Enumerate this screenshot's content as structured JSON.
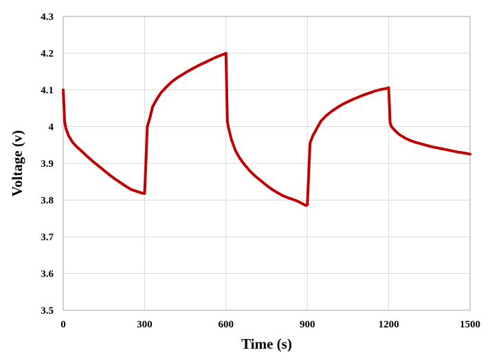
{
  "chart_data": {
    "type": "line",
    "title": "",
    "xlabel": "Time (s)",
    "ylabel": "Voltage (v)",
    "xlim": [
      0,
      1500
    ],
    "ylim": [
      3.5,
      4.3
    ],
    "x_ticks": [
      0,
      300,
      600,
      900,
      1200,
      1500
    ],
    "x_tick_labels": [
      "0",
      "300",
      "600",
      "900",
      "1200",
      "1500"
    ],
    "y_ticks": [
      3.5,
      3.6,
      3.7,
      3.8,
      3.9,
      4.0,
      4.1,
      4.2,
      4.3
    ],
    "y_tick_labels": [
      "3.5",
      "3.6",
      "3.7",
      "3.8",
      "3.9",
      "4",
      "4.1",
      "4.2",
      "4.3"
    ],
    "grid": true,
    "legend": "none",
    "series": [
      {
        "color": "#c00000",
        "x": [
          0,
          5,
          10,
          20,
          35,
          50,
          70,
          90,
          110,
          130,
          150,
          170,
          190,
          210,
          230,
          250,
          270,
          290,
          300,
          305,
          310,
          320,
          330,
          345,
          360,
          380,
          400,
          420,
          440,
          460,
          480,
          500,
          520,
          540,
          560,
          580,
          595,
          600,
          605,
          610,
          620,
          635,
          650,
          670,
          690,
          710,
          730,
          750,
          770,
          790,
          810,
          830,
          850,
          870,
          885,
          895,
          900,
          905,
          910,
          920,
          935,
          950,
          970,
          990,
          1010,
          1030,
          1050,
          1070,
          1090,
          1110,
          1130,
          1150,
          1170,
          1190,
          1200,
          1205,
          1210,
          1225,
          1240,
          1260,
          1280,
          1300,
          1320,
          1340,
          1360,
          1380,
          1400,
          1420,
          1440,
          1460,
          1480,
          1500
        ],
        "y": [
          4.1,
          4.015,
          3.995,
          3.975,
          3.957,
          3.945,
          3.932,
          3.918,
          3.905,
          3.893,
          3.881,
          3.869,
          3.858,
          3.848,
          3.838,
          3.829,
          3.824,
          3.819,
          3.818,
          3.905,
          4.0,
          4.025,
          4.055,
          4.075,
          4.092,
          4.108,
          4.122,
          4.133,
          4.142,
          4.151,
          4.159,
          4.167,
          4.174,
          4.181,
          4.188,
          4.194,
          4.198,
          4.2,
          4.015,
          3.995,
          3.965,
          3.935,
          3.915,
          3.895,
          3.878,
          3.864,
          3.852,
          3.84,
          3.829,
          3.82,
          3.812,
          3.806,
          3.801,
          3.795,
          3.789,
          3.785,
          3.787,
          3.87,
          3.955,
          3.975,
          3.995,
          4.015,
          4.03,
          4.042,
          4.052,
          4.061,
          4.068,
          4.075,
          4.081,
          4.087,
          4.092,
          4.097,
          4.101,
          4.104,
          4.106,
          4.012,
          4.0,
          3.988,
          3.978,
          3.969,
          3.962,
          3.957,
          3.953,
          3.949,
          3.945,
          3.942,
          3.939,
          3.936,
          3.933,
          3.93,
          3.928,
          3.925
        ]
      }
    ]
  }
}
